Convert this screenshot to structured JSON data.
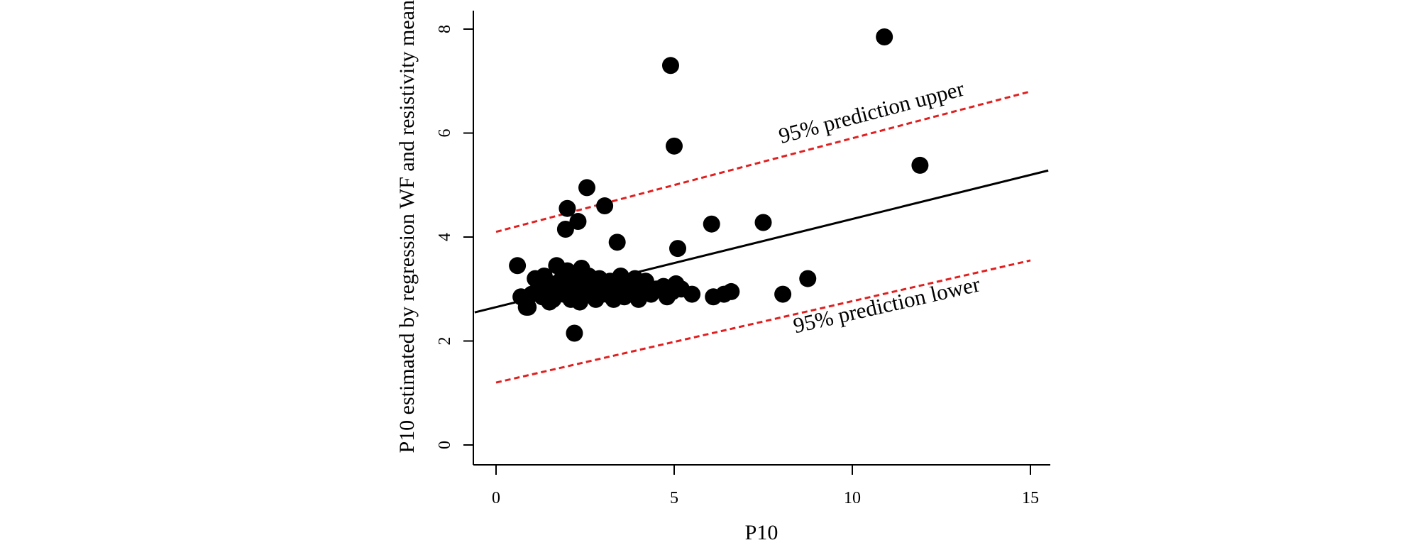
{
  "chart_data": {
    "type": "scatter",
    "title": "",
    "xlabel": "P10",
    "ylabel": "P10 estimated by regression WF and resistivity mean",
    "xlim": [
      -0.6,
      15.5
    ],
    "ylim": [
      -0.4,
      8.3
    ],
    "xticks": [
      "0",
      "5",
      "10",
      "15"
    ],
    "yticks": [
      "0",
      "2",
      "4",
      "6",
      "8"
    ],
    "points": [
      [
        0.6,
        3.45
      ],
      [
        0.7,
        2.85
      ],
      [
        0.85,
        2.65
      ],
      [
        1.0,
        2.9
      ],
      [
        1.1,
        3.2
      ],
      [
        1.2,
        3.05
      ],
      [
        1.3,
        2.85
      ],
      [
        1.35,
        3.25
      ],
      [
        1.45,
        2.95
      ],
      [
        1.55,
        3.1
      ],
      [
        1.6,
        2.8
      ],
      [
        1.7,
        3.45
      ],
      [
        1.75,
        3.0
      ],
      [
        1.85,
        3.2
      ],
      [
        1.9,
        2.9
      ],
      [
        2.0,
        3.35
      ],
      [
        2.05,
        3.05
      ],
      [
        2.1,
        2.8
      ],
      [
        2.2,
        3.2
      ],
      [
        2.3,
        2.95
      ],
      [
        2.35,
        2.75
      ],
      [
        2.4,
        3.4
      ],
      [
        2.45,
        3.1
      ],
      [
        2.55,
        2.9
      ],
      [
        2.6,
        3.25
      ],
      [
        2.7,
        3.0
      ],
      [
        2.8,
        2.8
      ],
      [
        2.9,
        3.2
      ],
      [
        3.0,
        3.05
      ],
      [
        3.1,
        2.9
      ],
      [
        3.2,
        3.15
      ],
      [
        3.3,
        2.8
      ],
      [
        3.4,
        3.0
      ],
      [
        3.5,
        3.25
      ],
      [
        3.6,
        2.85
      ],
      [
        3.7,
        3.1
      ],
      [
        3.8,
        2.95
      ],
      [
        3.9,
        3.2
      ],
      [
        4.0,
        2.8
      ],
      [
        4.1,
        3.05
      ],
      [
        4.2,
        3.15
      ],
      [
        4.35,
        2.9
      ],
      [
        4.5,
        3.0
      ],
      [
        4.7,
        3.05
      ],
      [
        4.8,
        2.85
      ],
      [
        4.95,
        2.95
      ],
      [
        5.05,
        3.1
      ],
      [
        5.2,
        3.0
      ],
      [
        5.5,
        2.9
      ],
      [
        6.1,
        2.85
      ],
      [
        6.4,
        2.9
      ],
      [
        6.6,
        2.95
      ],
      [
        0.9,
        2.65
      ],
      [
        1.5,
        2.75
      ],
      [
        2.2,
        2.15
      ],
      [
        1.95,
        4.15
      ],
      [
        2.0,
        4.55
      ],
      [
        2.3,
        4.3
      ],
      [
        2.55,
        4.95
      ],
      [
        3.05,
        4.6
      ],
      [
        3.4,
        3.9
      ],
      [
        4.9,
        7.3
      ],
      [
        5.0,
        5.75
      ],
      [
        5.1,
        3.78
      ],
      [
        6.05,
        4.25
      ],
      [
        7.5,
        4.28
      ],
      [
        8.05,
        2.9
      ],
      [
        8.75,
        3.2
      ],
      [
        10.9,
        7.85
      ],
      [
        11.9,
        5.38
      ]
    ],
    "lines": [
      {
        "name": "regression",
        "style": "solid",
        "color": "#000000",
        "x": [
          -0.6,
          15.5
        ],
        "y": [
          2.55,
          5.28
        ]
      },
      {
        "name": "95% prediction upper",
        "style": "dashed",
        "color": "#e02020",
        "x": [
          0,
          15
        ],
        "y": [
          4.1,
          6.8
        ]
      },
      {
        "name": "95% prediction lower",
        "style": "dashed",
        "color": "#e02020",
        "x": [
          0,
          15
        ],
        "y": [
          1.2,
          3.55
        ]
      }
    ],
    "annotations": [
      {
        "text": "95% prediction upper",
        "x": 8.0,
        "y": 5.8
      },
      {
        "text": "95% prediction lower",
        "x": 8.4,
        "y": 2.15
      }
    ]
  }
}
